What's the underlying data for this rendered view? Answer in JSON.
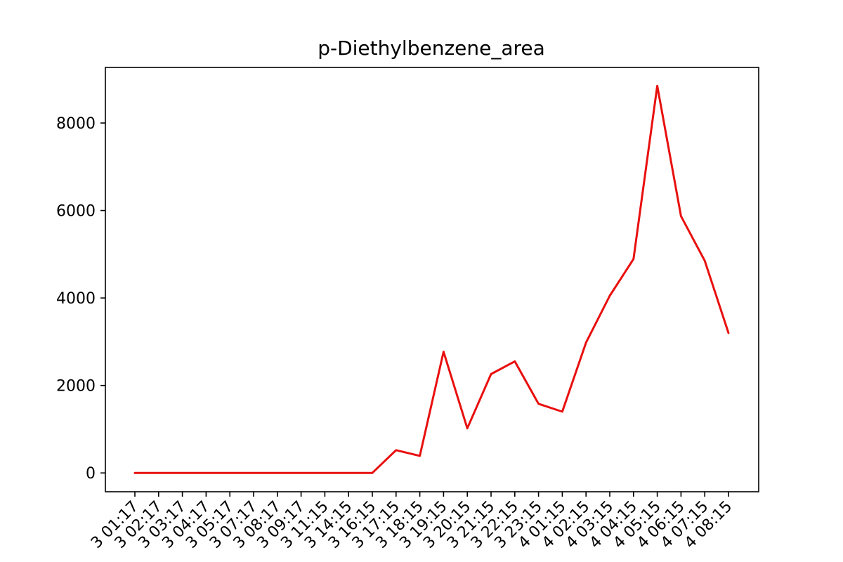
{
  "chart_data": {
    "type": "line",
    "title": "p-Diethylbenzene_area",
    "xlabel": "",
    "ylabel": "",
    "x_tick_labels": [
      "3 01:17",
      "3 02:17",
      "3 03:17",
      "3 04:17",
      "3 05:17",
      "3 07:17",
      "3 08:17",
      "3 09:17",
      "3 11:15",
      "3 14:15",
      "3 16:15",
      "3 17:15",
      "3 18:15",
      "3 19:15",
      "3 20:15",
      "3 21:15",
      "3 22:15",
      "3 23:15",
      "4 01:15",
      "4 02:15",
      "4 03:15",
      "4 04:15",
      "4 05:15",
      "4 06:15",
      "4 07:15",
      "4 08:15"
    ],
    "y_ticks": [
      0,
      2000,
      4000,
      6000,
      8000
    ],
    "y_tick_labels": [
      "0",
      "2000",
      "4000",
      "6000",
      "8000"
    ],
    "ylim": [
      -430,
      9270
    ],
    "grid": false,
    "series": [
      {
        "color": "#e8100f",
        "values": [
          0,
          0,
          0,
          0,
          0,
          0,
          0,
          0,
          0,
          0,
          0,
          520,
          390,
          2770,
          1020,
          2260,
          2550,
          1580,
          1400,
          2980,
          4050,
          4890,
          8850,
          5870,
          4850,
          3200
        ]
      }
    ]
  }
}
